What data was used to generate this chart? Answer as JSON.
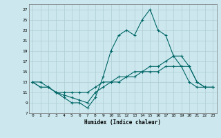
{
  "xlabel": "Humidex (Indice chaleur)",
  "background_color": "#cce8ee",
  "grid_color": "#b0ccd4",
  "line_color": "#006666",
  "xlim": [
    -0.5,
    23.5
  ],
  "ylim": [
    7,
    28
  ],
  "yticks": [
    7,
    9,
    11,
    13,
    15,
    17,
    19,
    21,
    23,
    25,
    27
  ],
  "xticks": [
    0,
    1,
    2,
    3,
    4,
    5,
    6,
    7,
    8,
    9,
    10,
    11,
    12,
    13,
    14,
    15,
    16,
    17,
    18,
    19,
    20,
    21,
    22,
    23
  ],
  "line1_x": [
    0,
    1,
    2,
    3,
    4,
    5,
    6,
    7,
    8,
    9,
    10,
    11,
    12,
    13,
    14,
    15,
    16,
    17,
    18,
    19,
    20,
    21,
    22,
    23
  ],
  "line1_y": [
    13,
    13,
    12,
    11,
    10,
    9,
    9,
    8,
    10,
    14,
    19,
    22,
    23,
    22,
    25,
    27,
    23,
    22,
    18,
    16,
    13,
    12,
    12,
    12
  ],
  "line2_x": [
    0,
    1,
    2,
    3,
    4,
    5,
    6,
    7,
    8,
    9,
    10,
    11,
    12,
    13,
    14,
    15,
    16,
    17,
    18,
    19,
    20,
    21,
    22,
    23
  ],
  "line2_y": [
    13,
    12,
    12,
    11,
    11,
    11,
    11,
    11,
    12,
    13,
    13,
    14,
    14,
    15,
    15,
    16,
    16,
    17,
    18,
    18,
    16,
    13,
    12,
    12
  ],
  "line3_x": [
    0,
    1,
    2,
    3,
    4,
    5,
    6,
    7,
    8,
    9,
    10,
    11,
    12,
    13,
    14,
    15,
    16,
    17,
    18,
    19,
    20,
    21,
    22,
    23
  ],
  "line3_y": [
    13,
    12,
    12,
    11,
    10.5,
    10,
    9.5,
    9,
    11,
    12,
    13,
    13,
    14,
    14,
    15,
    15,
    15,
    16,
    16,
    16,
    16,
    13,
    12,
    12
  ]
}
